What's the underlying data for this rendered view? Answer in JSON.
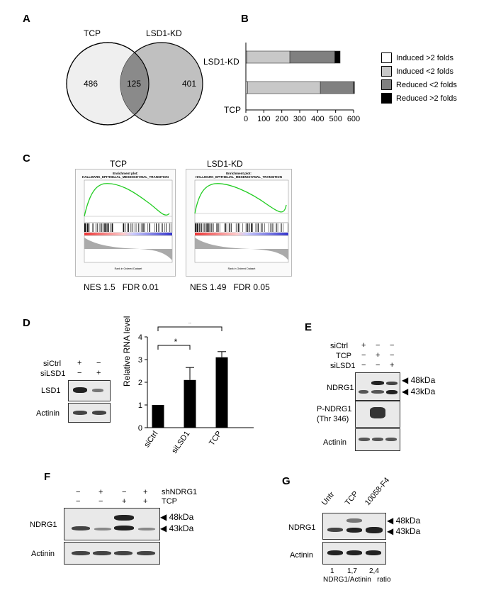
{
  "panels": {
    "A": "A",
    "B": "B",
    "C": "C",
    "D": "D",
    "E": "E",
    "F": "F",
    "G": "G"
  },
  "venn": {
    "left_label": "TCP",
    "right_label": "LSD1-KD",
    "left_count": "486",
    "overlap_count": "125",
    "right_count": "401"
  },
  "chart_data": {
    "type": "bar",
    "orientation": "horizontal-stacked",
    "categories": [
      "LSD1-KD",
      "TCP"
    ],
    "series": [
      {
        "name": "Induced >2 folds",
        "color": "#ffffff",
        "values": [
          5,
          10
        ]
      },
      {
        "name": "Induced <2 folds",
        "color": "#c8c8c8",
        "values": [
          240,
          405
        ]
      },
      {
        "name": "Reduced <2 folds",
        "color": "#808080",
        "values": [
          250,
          185
        ]
      },
      {
        "name": "Reduced >2 folds",
        "color": "#000000",
        "values": [
          30,
          5
        ]
      }
    ],
    "xlim": [
      0,
      600
    ],
    "xticks": [
      "0",
      "100",
      "200",
      "300",
      "400",
      "500",
      "600"
    ]
  },
  "gsea": [
    {
      "title": "TCP",
      "plot_title": "Enrichment plot:\nHALLMARK_EPITHELIAL_MESENCHYMAL_TRANSITION",
      "nes": "NES 1.5",
      "fdr": "FDR 0.01"
    },
    {
      "title": "LSD1-KD",
      "plot_title": "Enrichment plot:\nHALLMARK_EPITHELIAL_MESENCHYMAL_TRANSITION",
      "nes": "NES 1.49",
      "fdr": "FDR 0.05"
    }
  ],
  "panel_d": {
    "rows": [
      "siCtrl",
      "siLSD1"
    ],
    "signs": [
      [
        "+",
        "−"
      ],
      [
        "−",
        "+"
      ]
    ],
    "blots": [
      "LSD1",
      "Actinin"
    ],
    "ylabel": "Relative RNA level",
    "bar_chart": {
      "type": "bar",
      "categories": [
        "siCtrl",
        "siLSD1",
        "TCP"
      ],
      "values": [
        1.0,
        2.1,
        3.1
      ],
      "errors": [
        0,
        0.55,
        0.25
      ],
      "ylim": [
        0,
        4
      ],
      "yticks": [
        "0",
        "1",
        "2",
        "3",
        "4"
      ]
    },
    "sig": "*"
  },
  "panel_e": {
    "rows": [
      "siCtrl",
      "TCP",
      "siLSD1"
    ],
    "signs": [
      [
        "+",
        "−",
        "−"
      ],
      [
        "−",
        "+",
        "−"
      ],
      [
        "−",
        "−",
        "+"
      ]
    ],
    "blots": [
      "NDRG1",
      "P-NDRG1\n(Thr 346)",
      "Actinin"
    ],
    "mw": [
      "48kDa",
      "43kDa"
    ]
  },
  "panel_f": {
    "rows": [
      "shNDRG1",
      "TCP"
    ],
    "signs": [
      [
        "−",
        "+",
        "−",
        "+"
      ],
      [
        "−",
        "−",
        "+",
        "+"
      ]
    ],
    "blots": [
      "NDRG1",
      "Actinin"
    ],
    "mw": [
      "48kDa",
      "43kDa"
    ]
  },
  "panel_g": {
    "lanes": [
      "Untr",
      "TCP",
      "10058-F4"
    ],
    "blots": [
      "NDRG1",
      "Actinin"
    ],
    "mw": [
      "48kDa",
      "43kDa"
    ],
    "ratios": [
      "1",
      "1,7",
      "2,4"
    ],
    "ratio_label": "NDRG1/Actinin   ratio"
  }
}
